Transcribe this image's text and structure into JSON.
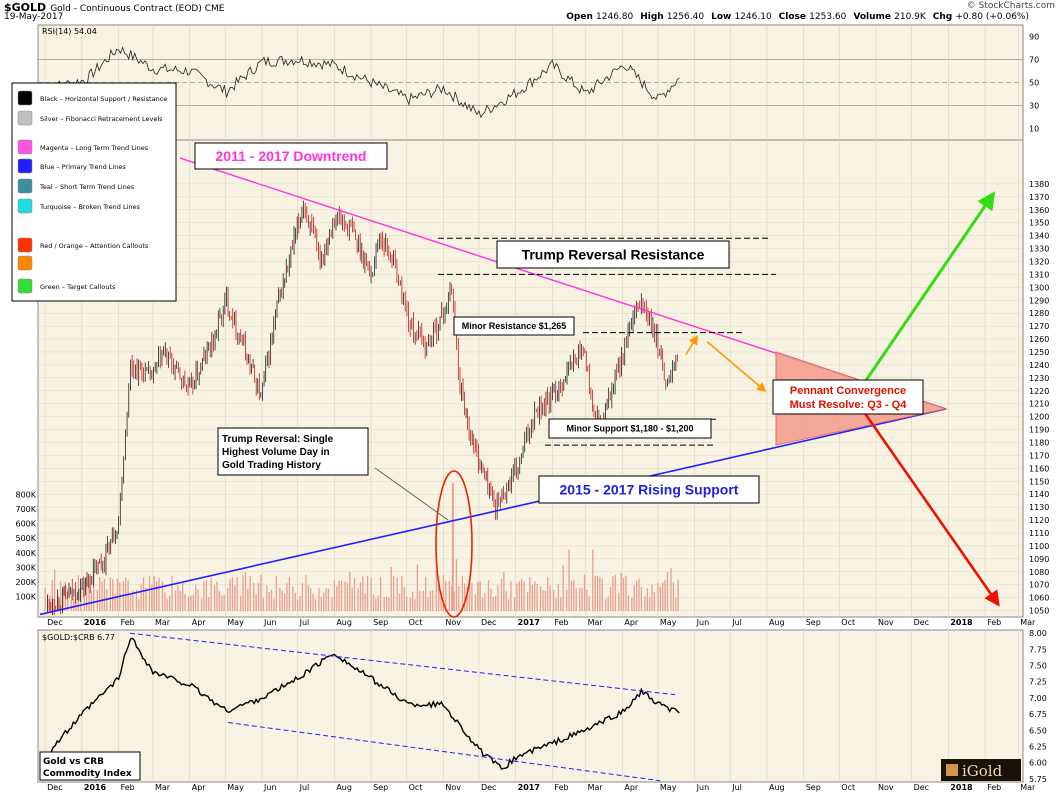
{
  "header": {
    "symbol": "$GOLD",
    "description": "Gold - Continuous Contract (EOD) CME",
    "date": "19-May-2017",
    "watermark": "© StockCharts.com",
    "ohlc": [
      {
        "label": "Open",
        "value": "1246.80"
      },
      {
        "label": "High",
        "value": "1256.40"
      },
      {
        "label": "Low",
        "value": "1246.10"
      },
      {
        "label": "Close",
        "value": "1253.60"
      },
      {
        "label": "Volume",
        "value": "210.9K"
      },
      {
        "label": "Chg",
        "value": "+0.80 (+0.06%)"
      }
    ]
  },
  "legend": {
    "items": [
      {
        "label": "Black – Horizontal Support / Resistance",
        "color": "#000000"
      },
      {
        "label": "Silver – Fibonacci Retracement Levels",
        "color": "#c0c0c0"
      },
      {
        "label": "Magenta – Long Term Trend Lines",
        "color": "#ff55dd"
      },
      {
        "label": "Blue – Primary Trend Lines",
        "color": "#1f1fff"
      },
      {
        "label": "Teal – Short Term Trend Lines",
        "color": "#3a8fa0"
      },
      {
        "label": "Turquoise – Broken Trend Lines",
        "color": "#22dddd"
      },
      {
        "label": "Red / Orange – Attention Callouts",
        "color": "#ff3300"
      },
      {
        "label": "Orange",
        "color": "#ff8800"
      },
      {
        "label": "Green – Target Callouts",
        "color": "#33dd33"
      }
    ]
  },
  "annotations": {
    "downtrend": "2011 - 2017 Downtrend",
    "trump_resistance": "Trump Reversal Resistance",
    "minor_resistance": "Minor Resistance $1,265",
    "minor_support": "Minor Support $1,180 - $1,200",
    "trump_volume_line1": "Trump Reversal: Single",
    "trump_volume_line2": "Highest Volume Day in",
    "trump_volume_line3": "Gold Trading History",
    "rising_support": "2015 - 2017 Rising Support",
    "pennant_line1": "Pennant Convergence",
    "pennant_line2": "Must Resolve: Q3 - Q4"
  },
  "colors": {
    "magenta": "#ff33dd",
    "blue": "#1f1fff",
    "green": "#33dd11",
    "red": "#ee1100",
    "orange": "#ff9900",
    "candle_up": "#222222",
    "candle_down": "#c41a1a",
    "volume": "#e8a090",
    "panel_bg": "#f7f2e2",
    "pennant_fill": "#f4a090"
  },
  "chart_data": [
    {
      "type": "line",
      "title": "RSI(14) 54.04",
      "ylim": [
        0,
        100
      ],
      "y_ticks": [
        90,
        70,
        50,
        30,
        10
      ],
      "levels": [
        70,
        50,
        30
      ],
      "dates": [
        "2015-12-01",
        "2016-01-04",
        "2016-02-01",
        "2016-03-01",
        "2016-04-01",
        "2016-05-02",
        "2016-06-01",
        "2016-07-01",
        "2016-08-01",
        "2016-09-01",
        "2016-10-03",
        "2016-11-01",
        "2016-12-01",
        "2017-01-03",
        "2017-02-01",
        "2017-03-01",
        "2017-04-03",
        "2017-05-01",
        "2017-05-19"
      ],
      "values": [
        45,
        52,
        80,
        62,
        60,
        42,
        68,
        70,
        65,
        50,
        35,
        45,
        22,
        42,
        65,
        40,
        66,
        35,
        54
      ]
    },
    {
      "type": "bar",
      "title": "Gold - Continuous Contract (EOD) CME",
      "subtype": "candlestick",
      "ylim": [
        1045,
        1390
      ],
      "y_ticks": [
        1380,
        1370,
        1360,
        1350,
        1340,
        1330,
        1320,
        1310,
        1300,
        1290,
        1280,
        1270,
        1260,
        1250,
        1240,
        1230,
        1220,
        1210,
        1200,
        1190,
        1180,
        1170,
        1160,
        1150,
        1140,
        1130,
        1120,
        1110,
        1100,
        1090,
        1080,
        1070,
        1060,
        1050
      ],
      "dates": [
        "2015-12-03",
        "2015-12-17",
        "2016-01-04",
        "2016-01-20",
        "2016-02-01",
        "2016-02-11",
        "2016-02-29",
        "2016-03-10",
        "2016-04-01",
        "2016-04-21",
        "2016-05-02",
        "2016-05-18",
        "2016-05-31",
        "2016-06-15",
        "2016-06-24",
        "2016-07-06",
        "2016-07-20",
        "2016-08-01",
        "2016-08-15",
        "2016-09-01",
        "2016-09-08",
        "2016-09-20",
        "2016-10-04",
        "2016-10-18",
        "2016-11-01",
        "2016-11-08",
        "2016-11-15",
        "2016-11-24",
        "2016-12-15",
        "2017-01-03",
        "2017-01-17",
        "2017-02-01",
        "2017-02-27",
        "2017-03-08",
        "2017-03-15",
        "2017-04-03",
        "2017-04-17",
        "2017-05-01",
        "2017-05-09",
        "2017-05-19"
      ],
      "values": [
        1055,
        1060,
        1070,
        1090,
        1120,
        1240,
        1230,
        1250,
        1220,
        1260,
        1290,
        1250,
        1215,
        1290,
        1320,
        1365,
        1320,
        1355,
        1345,
        1310,
        1340,
        1320,
        1270,
        1255,
        1280,
        1300,
        1225,
        1185,
        1130,
        1160,
        1205,
        1215,
        1255,
        1200,
        1195,
        1255,
        1290,
        1255,
        1225,
        1253
      ]
    },
    {
      "type": "bar",
      "title": "Volume",
      "ylim": [
        0,
        900000
      ],
      "y_ticks": [
        "100K",
        "200K",
        "300K",
        "400K",
        "500K",
        "600K",
        "700K",
        "800K"
      ],
      "y_tick_values": [
        100000,
        200000,
        300000,
        400000,
        500000,
        600000,
        700000,
        800000
      ],
      "spike": {
        "date": "2016-11-09",
        "value": 880000
      }
    },
    {
      "type": "line",
      "title": "$GOLD:$CRB 6.77",
      "ylim": [
        5.7,
        8.05
      ],
      "y_ticks": [
        8.0,
        7.75,
        7.5,
        7.25,
        7.0,
        6.75,
        6.5,
        6.25,
        6.0,
        5.75
      ],
      "y_tick_labels": [
        "8.00",
        "7.75",
        "7.50",
        "7.25",
        "7.00",
        "6.75",
        "6.50",
        "6.25",
        "6.00",
        "5.75"
      ],
      "dates": [
        "2015-12-01",
        "2016-01-04",
        "2016-02-01",
        "2016-02-11",
        "2016-03-01",
        "2016-04-01",
        "2016-05-02",
        "2016-06-01",
        "2016-07-01",
        "2016-08-01",
        "2016-08-15",
        "2016-09-01",
        "2016-10-03",
        "2016-11-01",
        "2016-12-01",
        "2016-12-20",
        "2017-01-03",
        "2017-02-01",
        "2017-03-01",
        "2017-04-03",
        "2017-04-17",
        "2017-05-01",
        "2017-05-19"
      ],
      "values": [
        6.1,
        6.8,
        7.3,
        7.95,
        7.4,
        7.2,
        6.8,
        7.0,
        7.3,
        7.7,
        7.5,
        7.3,
        6.9,
        6.9,
        6.2,
        5.9,
        6.1,
        6.3,
        6.5,
        6.8,
        7.1,
        6.9,
        6.77
      ],
      "inset_label_line1": "Gold vs CRB",
      "inset_label_line2": "Commodity Index"
    }
  ],
  "x_axis": {
    "labels": [
      "Dec",
      "2016",
      "Feb",
      "Mar",
      "Apr",
      "May",
      "Jun",
      "Jul",
      "Aug",
      "Sep",
      "Oct",
      "Nov",
      "Dec",
      "2017",
      "Feb",
      "Mar",
      "Apr",
      "May",
      "Jun",
      "Jul",
      "Aug",
      "Sep",
      "Oct",
      "Nov",
      "Dec",
      "2018",
      "Feb",
      "Mar"
    ],
    "bold": [
      "2016",
      "2017",
      "2018"
    ]
  },
  "brand": "iGold"
}
